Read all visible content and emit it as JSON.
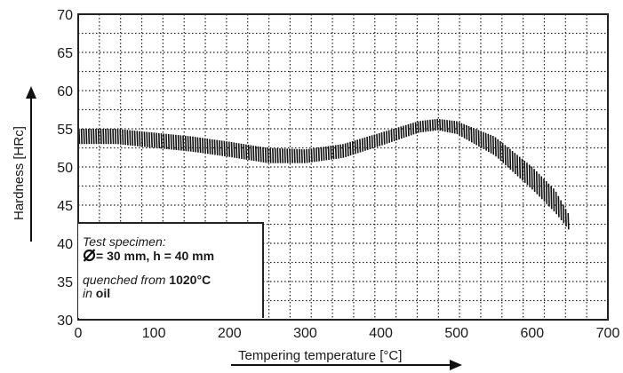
{
  "chart_data": {
    "type": "line",
    "title": "",
    "xlabel": "Tempering temperature [°C]",
    "ylabel": "Hardness [HRc]",
    "xlim": [
      0,
      700
    ],
    "ylim": [
      30,
      70
    ],
    "x_ticks": [
      "0",
      "100",
      "200",
      "300",
      "400",
      "500",
      "600",
      "700"
    ],
    "y_ticks": [
      "30",
      "35",
      "40",
      "45",
      "50",
      "55",
      "60",
      "65",
      "70"
    ],
    "grid": true,
    "series": [
      {
        "style": "hatched band",
        "x": [
          0,
          50,
          100,
          150,
          200,
          250,
          300,
          350,
          400,
          450,
          475,
          500,
          550,
          600,
          630,
          650
        ],
        "upper": [
          55.0,
          55.0,
          54.5,
          54.0,
          53.3,
          52.5,
          52.3,
          53.0,
          54.5,
          56.0,
          56.3,
          56.0,
          54.0,
          50.0,
          47.0,
          43.5
        ],
        "lower": [
          53.0,
          53.0,
          52.5,
          52.0,
          51.3,
          50.5,
          50.5,
          51.2,
          52.8,
          54.5,
          54.8,
          54.3,
          51.5,
          47.0,
          44.0,
          41.5
        ]
      }
    ]
  },
  "annotation": {
    "line1": "Test specimen:",
    "line2_rest": "= 30 mm, h = 40 mm",
    "line3_a": "quenched from ",
    "line3_b": "1020°C",
    "line4_a": "in",
    "line4_b": " oil"
  }
}
